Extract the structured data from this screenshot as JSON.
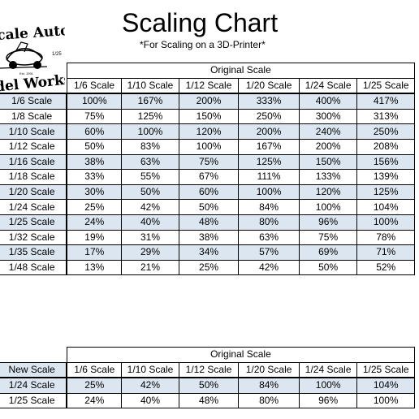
{
  "logo": {
    "line1": "cale Auto",
    "line2": "del Works",
    "scale_mark": "1/25",
    "since": "Est. 1991"
  },
  "title": "Scaling Chart",
  "subtitle": "*For Scaling on a 3D-Printer*",
  "top_table": {
    "group_header": "Original Scale",
    "columns": [
      "1/6 Scale",
      "1/10 Scale",
      "1/12 Scale",
      "1/20 Scale",
      "1/24 Scale",
      "1/25 Scale"
    ],
    "rows": [
      {
        "label": "1/6 Scale",
        "values": [
          "100%",
          "167%",
          "200%",
          "333%",
          "400%",
          "417%"
        ]
      },
      {
        "label": "1/8 Scale",
        "values": [
          "75%",
          "125%",
          "150%",
          "250%",
          "300%",
          "313%"
        ]
      },
      {
        "label": "1/10 Scale",
        "values": [
          "60%",
          "100%",
          "120%",
          "200%",
          "240%",
          "250%"
        ]
      },
      {
        "label": "1/12 Scale",
        "values": [
          "50%",
          "83%",
          "100%",
          "167%",
          "200%",
          "208%"
        ]
      },
      {
        "label": "1/16 Scale",
        "values": [
          "38%",
          "63%",
          "75%",
          "125%",
          "150%",
          "156%"
        ]
      },
      {
        "label": "1/18 Scale",
        "values": [
          "33%",
          "55%",
          "67%",
          "111%",
          "133%",
          "139%"
        ]
      },
      {
        "label": "1/20 Scale",
        "values": [
          "30%",
          "50%",
          "60%",
          "100%",
          "120%",
          "125%"
        ]
      },
      {
        "label": "1/24 Scale",
        "values": [
          "25%",
          "42%",
          "50%",
          "84%",
          "100%",
          "104%"
        ]
      },
      {
        "label": "1/25 Scale",
        "values": [
          "24%",
          "40%",
          "48%",
          "80%",
          "96%",
          "100%"
        ]
      },
      {
        "label": "1/32 Scale",
        "values": [
          "19%",
          "31%",
          "38%",
          "63%",
          "75%",
          "78%"
        ]
      },
      {
        "label": "1/35 Scale",
        "values": [
          "17%",
          "29%",
          "34%",
          "57%",
          "69%",
          "71%"
        ]
      },
      {
        "label": "1/48 Scale",
        "values": [
          "13%",
          "21%",
          "25%",
          "42%",
          "50%",
          "52%"
        ]
      }
    ]
  },
  "bottom_table": {
    "group_header": "Original Scale",
    "corner_label": "New Scale",
    "columns": [
      "1/6 Scale",
      "1/10 Scale",
      "1/12 Scale",
      "1/20 Scale",
      "1/24 Scale",
      "1/25 Scale"
    ],
    "rows": [
      {
        "label": "1/24 Scale",
        "values": [
          "25%",
          "42%",
          "50%",
          "84%",
          "100%",
          "104%"
        ]
      },
      {
        "label": "1/25 Scale",
        "values": [
          "24%",
          "40%",
          "48%",
          "80%",
          "96%",
          "100%"
        ]
      }
    ]
  },
  "colors": {
    "row_shade": "#dce6f1",
    "grid_line": "#000000"
  }
}
